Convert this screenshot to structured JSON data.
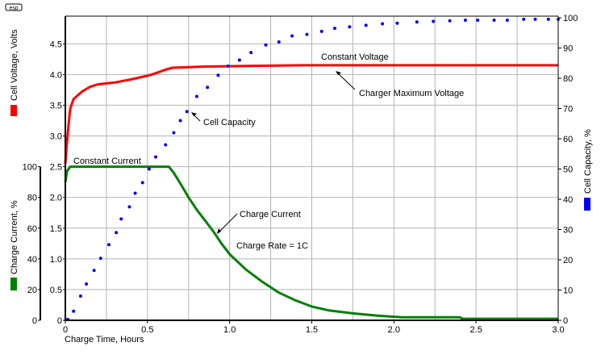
{
  "logo": "esp",
  "chart_data": {
    "type": "line",
    "title": "",
    "xlabel": "Charge Time, Hours",
    "xlim": [
      0,
      3.0
    ],
    "xticks": [
      "0",
      "0.5",
      "1.0",
      "1.5",
      "2.0",
      "2.5",
      "3.0"
    ],
    "grid": true,
    "axes": {
      "voltage": {
        "label": "Cell Voltage, Volts",
        "side": "left",
        "ylim": [
          0,
          4.95
        ],
        "ticks": [
          "0",
          "0.5",
          "1.0",
          "1.5",
          "2.0",
          "2.5",
          "3.0",
          "3.5",
          "4.0",
          "4.5"
        ],
        "color": "#ff0000"
      },
      "current": {
        "label": "Charge Current, %",
        "side": "left-outer",
        "ylim": [
          0,
          100
        ],
        "ticks": [
          "0",
          "20",
          "40",
          "60",
          "80",
          "100"
        ],
        "color": "#008000"
      },
      "capacity": {
        "label": "Cell Capacity, %",
        "side": "right",
        "ylim": [
          0,
          100
        ],
        "ticks": [
          "0",
          "10",
          "20",
          "30",
          "40",
          "50",
          "60",
          "70",
          "80",
          "90",
          "100"
        ],
        "color": "#0000ff"
      }
    },
    "series": [
      {
        "name": "Cell Voltage",
        "axis": "voltage",
        "style": "line",
        "color": "#ff0000",
        "x": [
          0,
          0.01,
          0.02,
          0.03,
          0.05,
          0.1,
          0.15,
          0.2,
          0.3,
          0.4,
          0.5,
          0.55,
          0.6,
          0.65,
          0.75,
          0.85,
          1.1,
          1.45,
          3.0
        ],
        "y": [
          2.55,
          2.9,
          3.2,
          3.45,
          3.6,
          3.72,
          3.8,
          3.84,
          3.87,
          3.92,
          3.98,
          4.02,
          4.07,
          4.11,
          4.12,
          4.13,
          4.14,
          4.15,
          4.15
        ]
      },
      {
        "name": "Charge Current",
        "axis": "current",
        "style": "line",
        "color": "#008000",
        "x": [
          0,
          0.01,
          0.03,
          0.63,
          0.66,
          0.7,
          0.75,
          0.8,
          0.85,
          0.9,
          0.95,
          1.0,
          1.1,
          1.2,
          1.3,
          1.4,
          1.5,
          1.6,
          1.75,
          1.9,
          2.05,
          2.4,
          2.42,
          3.0
        ],
        "y": [
          90,
          97,
          100,
          100,
          96,
          89,
          80,
          72,
          65,
          58,
          50,
          43,
          33,
          25,
          18,
          13,
          9,
          6.5,
          4.5,
          3,
          2,
          2,
          1,
          1
        ]
      },
      {
        "name": "Cell Capacity",
        "axis": "capacity",
        "style": "dots",
        "color": "#0000ff",
        "x": [
          0.015,
          0.05,
          0.093,
          0.128,
          0.175,
          0.215,
          0.265,
          0.31,
          0.34,
          0.39,
          0.425,
          0.47,
          0.51,
          0.55,
          0.61,
          0.66,
          0.7,
          0.74,
          0.8,
          0.865,
          0.93,
          0.99,
          1.06,
          1.13,
          1.22,
          1.3,
          1.38,
          1.47,
          1.56,
          1.64,
          1.73,
          1.83,
          1.93,
          2.02,
          2.14,
          2.24,
          2.34,
          2.435,
          2.51,
          2.61,
          2.69,
          2.79,
          2.86,
          2.94,
          3.0
        ],
        "y": [
          0.3,
          3,
          8,
          12,
          16.5,
          20.5,
          25,
          29,
          33.5,
          37.5,
          42,
          45.5,
          50,
          54,
          58,
          62,
          66,
          69,
          74,
          77,
          81,
          84,
          86,
          88.5,
          91,
          92,
          94,
          94.5,
          95.5,
          96.5,
          97,
          97.5,
          98,
          98.2,
          98.6,
          98.8,
          99,
          99.2,
          99.2,
          99.2,
          99.2,
          99.5,
          99.5,
          99.5,
          99.5
        ]
      }
    ],
    "annotations": [
      {
        "text": "Constant Voltage"
      },
      {
        "text": "Charger Maximum Voltage"
      },
      {
        "text": "Cell Capacity"
      },
      {
        "text": "Constant Current"
      },
      {
        "text": "Charge Current"
      },
      {
        "text": "Charge Rate = 1C"
      }
    ]
  }
}
